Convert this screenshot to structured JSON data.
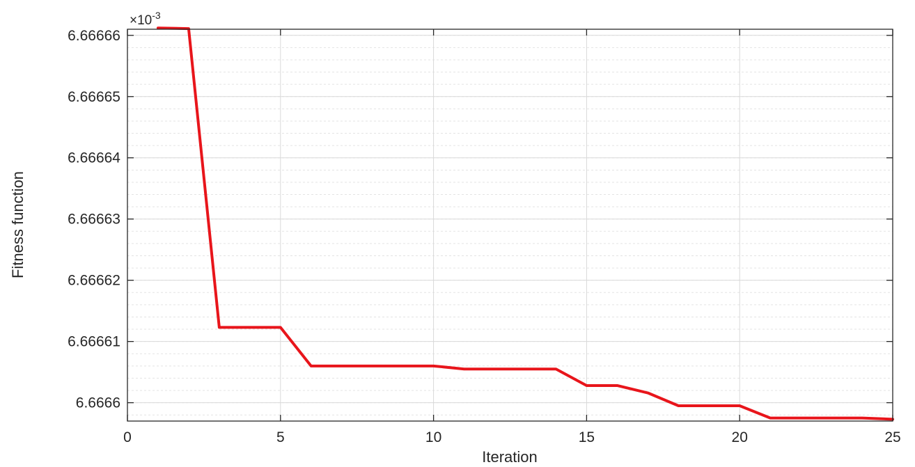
{
  "chart_data": {
    "type": "line",
    "title": "",
    "xlabel": "Iteration",
    "ylabel": "Fitness function",
    "y_exponent_label": "×10",
    "y_exponent": "-3",
    "xlim": [
      0,
      25
    ],
    "ylim": [
      6.666597,
      6.666661
    ],
    "x_ticks": [
      0,
      5,
      10,
      15,
      20,
      25
    ],
    "x_tick_labels": [
      "0",
      "5",
      "10",
      "15",
      "20",
      "25"
    ],
    "y_ticks": [
      6.6666,
      6.66661,
      6.66662,
      6.66663,
      6.66664,
      6.66665,
      6.66666
    ],
    "y_tick_labels": [
      "6.6666",
      "6.66661",
      "6.66662",
      "6.66663",
      "6.66664",
      "6.66665",
      "6.66666"
    ],
    "grid": true,
    "minor_grid": true,
    "line_color": "#e8151b",
    "series": [
      {
        "x": [
          1,
          2,
          3,
          4,
          5,
          6,
          7,
          8,
          9,
          10,
          11,
          12,
          13,
          14,
          15,
          16,
          17,
          18,
          19,
          20,
          21,
          22,
          23,
          24,
          25
        ],
        "y": [
          6.6666612,
          6.6666611,
          6.6666123,
          6.6666123,
          6.6666123,
          6.666606,
          6.666606,
          6.666606,
          6.666606,
          6.666606,
          6.6666055,
          6.6666055,
          6.6666055,
          6.6666055,
          6.6666028,
          6.6666028,
          6.6666016,
          6.6665995,
          6.6665995,
          6.6665995,
          6.6665975,
          6.6665975,
          6.6665975,
          6.6665975,
          6.6665973
        ]
      }
    ]
  }
}
